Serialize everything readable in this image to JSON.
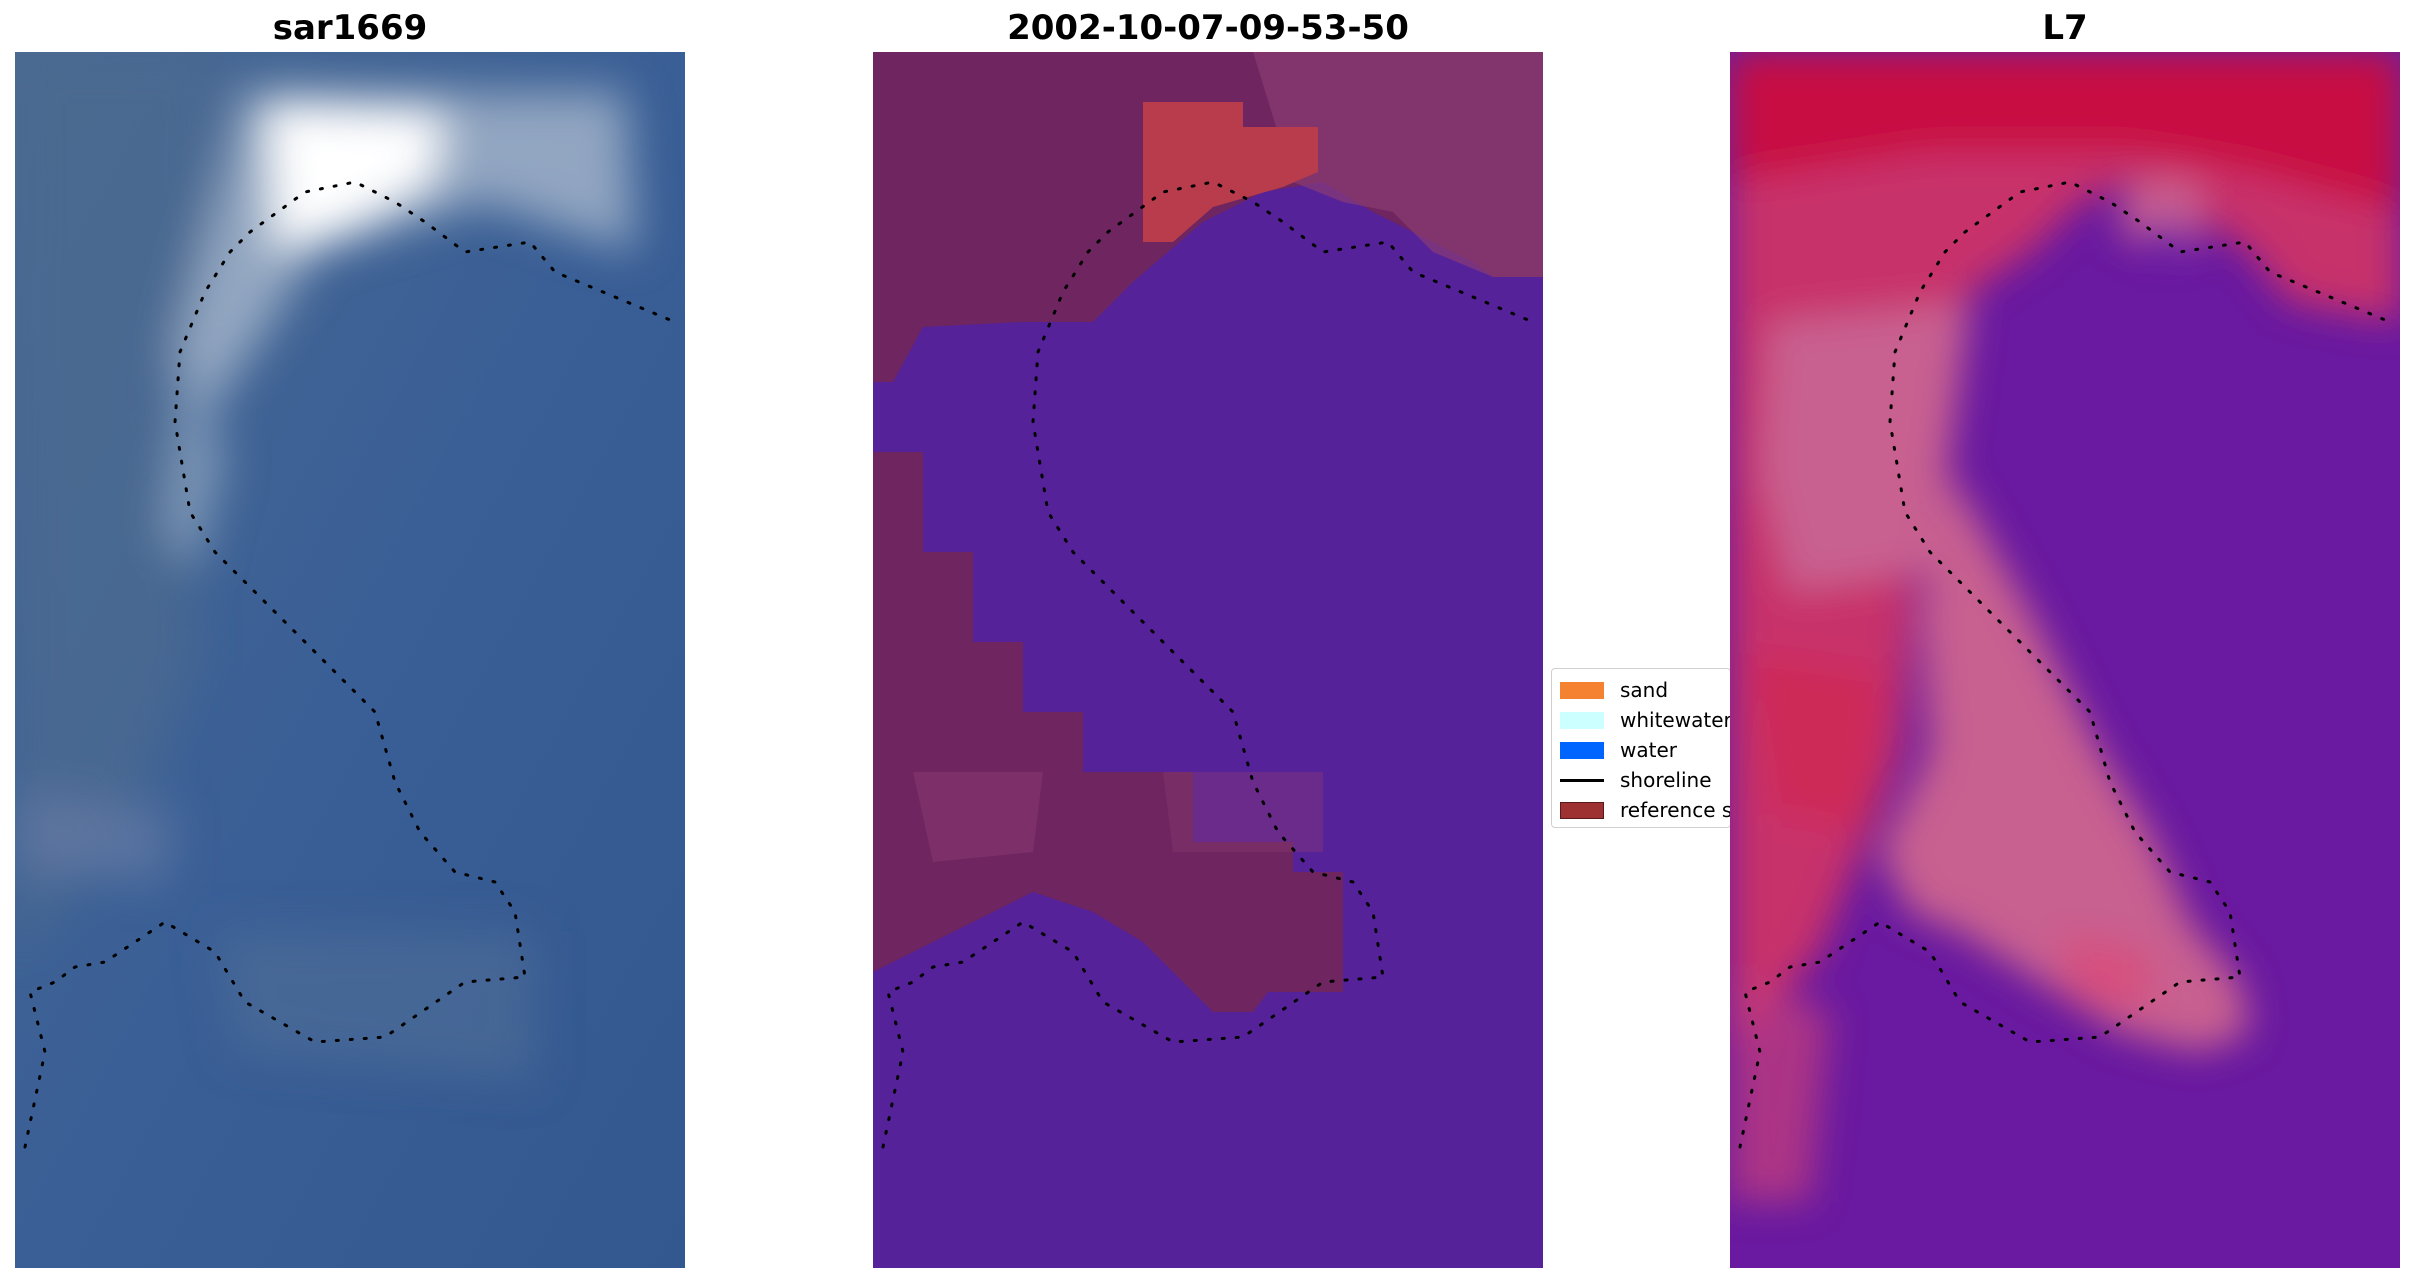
{
  "panels": [
    {
      "title": "sar1669"
    },
    {
      "title": "2002-10-07-09-53-50"
    },
    {
      "title": "L7"
    }
  ],
  "legend": {
    "items": [
      {
        "label": "sand",
        "color": "#f58231",
        "kind": "patch"
      },
      {
        "label": "whitewater",
        "color": "#ccffff",
        "kind": "patch"
      },
      {
        "label": "water",
        "color": "#0064ff",
        "kind": "patch"
      },
      {
        "label": "shoreline",
        "color": "#000000",
        "kind": "line"
      },
      {
        "label": "reference s",
        "color": "#9e3232",
        "kind": "patch"
      }
    ]
  },
  "colors": {
    "rgb_base": "#3c5f92",
    "rgb_bright": "#f4f6ff",
    "class_land": "#6e2560",
    "class_land_light": "#8a3a72",
    "class_water": "#55229a",
    "class_reference": "#b83c4c",
    "index_high": "#c80a3a",
    "index_mid": "#c86090",
    "index_low": "#6a1aa0",
    "shoreline": "#000000"
  }
}
